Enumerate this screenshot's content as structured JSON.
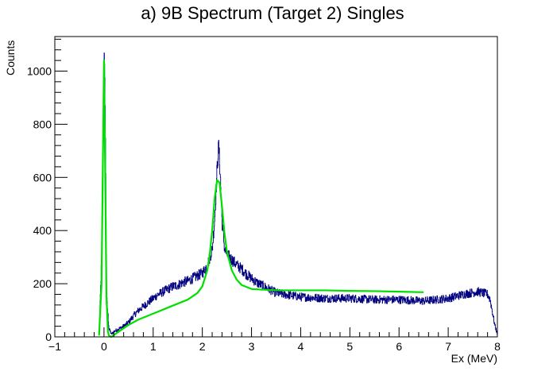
{
  "chart_data": {
    "type": "line",
    "title": "a) 9B Spectrum (Target 2) Singles",
    "xlabel": "Ex (MeV)",
    "ylabel": "Counts",
    "xlim": [
      -1,
      8
    ],
    "ylim": [
      0,
      1130
    ],
    "x_ticks": [
      -1,
      0,
      1,
      2,
      3,
      4,
      5,
      6,
      7,
      8
    ],
    "y_ticks": [
      0,
      200,
      400,
      600,
      800,
      1000
    ],
    "grid": false,
    "legend": "none",
    "series": [
      {
        "style": "histogram",
        "color": "#000080",
        "x": [
          -0.1,
          -0.05,
          0.0,
          0.02,
          0.05,
          0.1,
          0.15,
          0.2,
          0.3,
          0.4,
          0.5,
          0.6,
          0.7,
          0.8,
          0.9,
          1.0,
          1.1,
          1.2,
          1.3,
          1.4,
          1.5,
          1.6,
          1.7,
          1.8,
          1.9,
          2.0,
          2.1,
          2.2,
          2.25,
          2.3,
          2.33,
          2.36,
          2.4,
          2.45,
          2.5,
          2.6,
          2.7,
          2.8,
          2.9,
          3.0,
          3.1,
          3.3,
          3.5,
          4.0,
          4.5,
          5.0,
          5.5,
          6.0,
          6.5,
          7.0,
          7.3,
          7.6,
          7.8,
          7.85,
          7.9,
          7.95,
          8.0
        ],
        "y": [
          20,
          300,
          1060,
          900,
          150,
          30,
          10,
          20,
          30,
          40,
          55,
          80,
          100,
          115,
          130,
          145,
          160,
          170,
          180,
          190,
          195,
          205,
          210,
          220,
          230,
          240,
          270,
          330,
          450,
          640,
          720,
          620,
          430,
          330,
          310,
          290,
          270,
          255,
          235,
          220,
          205,
          185,
          165,
          150,
          145,
          145,
          140,
          140,
          135,
          145,
          160,
          170,
          160,
          140,
          90,
          40,
          10
        ]
      },
      {
        "style": "line",
        "color": "#00e000",
        "x": [
          -0.1,
          -0.05,
          -0.02,
          0.0,
          0.02,
          0.05,
          0.08,
          0.1,
          0.15,
          0.3,
          0.5,
          0.7,
          0.9,
          1.1,
          1.3,
          1.5,
          1.7,
          1.9,
          2.0,
          2.1,
          2.15,
          2.2,
          2.25,
          2.3,
          2.35,
          2.4,
          2.45,
          2.5,
          2.6,
          2.7,
          2.8,
          3.0,
          3.5,
          4.0,
          4.5,
          5.0,
          5.5,
          6.0,
          6.5
        ],
        "y": [
          5,
          200,
          700,
          1040,
          700,
          150,
          20,
          5,
          0,
          20,
          45,
          65,
          80,
          95,
          110,
          125,
          140,
          165,
          190,
          250,
          310,
          400,
          520,
          590,
          580,
          490,
          390,
          320,
          250,
          215,
          195,
          180,
          175,
          175,
          175,
          173,
          172,
          170,
          168
        ]
      }
    ]
  }
}
